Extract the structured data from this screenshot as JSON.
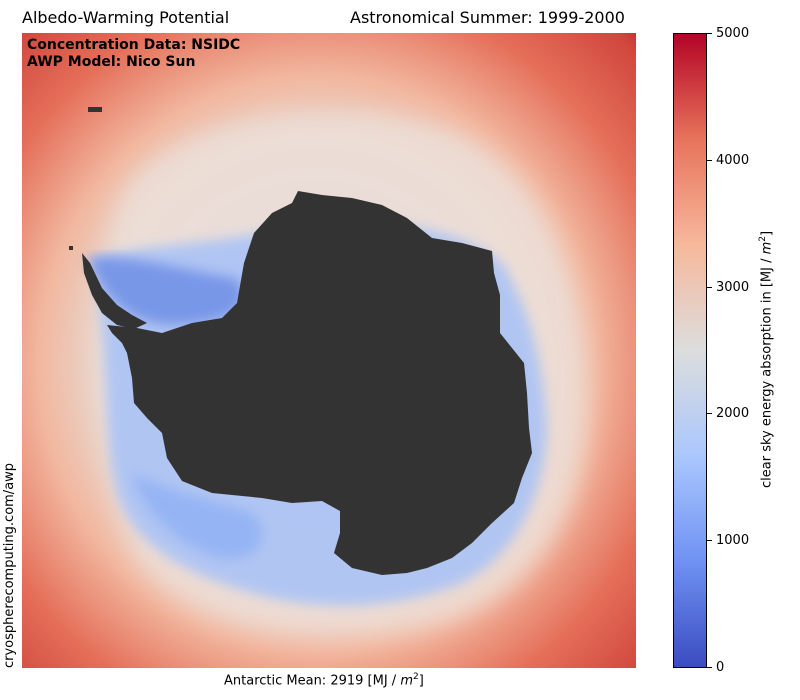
{
  "header": {
    "title_left": "Albedo-Warming Potential",
    "title_right": "Astronomical Summer: 1999-2000"
  },
  "overlay": {
    "line1": "Concentration Data: NSIDC",
    "line2": "AWP Model: Nico Sun"
  },
  "side_credit": "cryospherecomputing.com/awp",
  "footer": {
    "prefix": "Antarctic Mean: 2919 [MJ / ",
    "unit_base": "m",
    "unit_exp": "2",
    "suffix": "]"
  },
  "colorbar": {
    "label_prefix": "clear sky energy absorption in [MJ / ",
    "label_unit_base": "m",
    "label_unit_exp": "2",
    "label_suffix": "]",
    "ticks": [
      "5000",
      "4000",
      "3000",
      "2000",
      "1000",
      "0"
    ],
    "range": [
      0,
      5000
    ],
    "colormap": "coolwarm",
    "colors": [
      "#3b4cc0",
      "#6f92f3",
      "#aac7fd",
      "#dcdddd",
      "#f7b89c",
      "#e7745b",
      "#b40426"
    ]
  },
  "map": {
    "land_color": "#333333",
    "open_ocean_color": "#d8503f",
    "region": "Antarctica"
  }
}
